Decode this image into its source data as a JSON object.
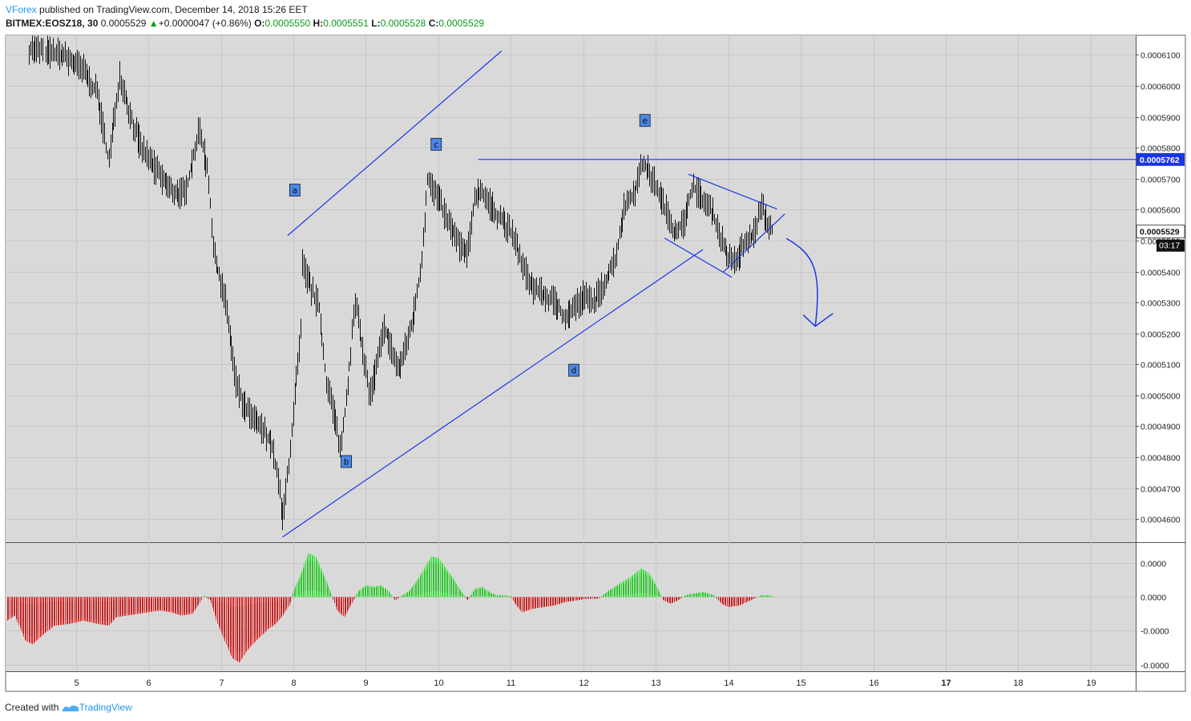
{
  "header": {
    "user": "VForex",
    "published_text": "published on TradingView.com, December 14, 2018 15:26 EET",
    "symbol": "BITMEX:EOSZ18, 30",
    "last": "0.0005529",
    "change": "+0.0000047 (+0.86%)",
    "o_label": "O:",
    "o_value": "0.0005550",
    "h_label": "H:",
    "h_value": "0.0005551",
    "l_label": "L:",
    "l_value": "0.0005528",
    "c_label": "C:",
    "c_value": "0.0005529"
  },
  "footer": {
    "created_with": "Created with",
    "brand": "TradingView"
  },
  "colors": {
    "background": "#d9d9d9",
    "trendline": "#1a35e6",
    "candle": "#111111",
    "osc_up": "#33e233",
    "osc_down": "#e02a2a",
    "axis_badge": "#1a35e6"
  },
  "chart_data": [
    {
      "type": "candlestick",
      "x_ticks": [
        "5",
        "6",
        "7",
        "8",
        "9",
        "10",
        "11",
        "12",
        "13",
        "14",
        "15",
        "16",
        "17",
        "18",
        "19"
      ],
      "x_tick_values": [
        5,
        6,
        7,
        8,
        9,
        10,
        11,
        12,
        13,
        14,
        15,
        16,
        17,
        18,
        19
      ],
      "xlim": [
        4.03,
        19.62
      ],
      "y_ticks": [
        "0.0004600",
        "0.0004700",
        "0.0004800",
        "0.0004900",
        "0.0005000",
        "0.0005100",
        "0.0005200",
        "0.0005300",
        "0.0005400",
        "0.0005500",
        "0.0005600",
        "0.0005700",
        "0.0005800",
        "0.0005900",
        "0.0006000",
        "0.0006100"
      ],
      "y_tick_values": [
        0.00046,
        0.00047,
        0.00048,
        0.00049,
        0.0005,
        0.00051,
        0.00052,
        0.00053,
        0.00054,
        0.00055,
        0.00056,
        0.00057,
        0.00058,
        0.00059,
        0.0006,
        0.00061
      ],
      "ylim": [
        0.00045255,
        0.00061632
      ],
      "grid": true,
      "price_path": [
        [
          4.35,
          0.000612
        ],
        [
          4.8,
          0.00061
        ],
        [
          5.1,
          0.000605
        ],
        [
          5.3,
          0.000597
        ],
        [
          5.45,
          0.000575
        ],
        [
          5.6,
          0.000604
        ],
        [
          5.75,
          0.00059
        ],
        [
          5.9,
          0.00058
        ],
        [
          6.1,
          0.000573
        ],
        [
          6.3,
          0.000566
        ],
        [
          6.5,
          0.000565
        ],
        [
          6.7,
          0.000586
        ],
        [
          6.82,
          0.000572
        ],
        [
          6.9,
          0.000545
        ],
        [
          7.05,
          0.000532
        ],
        [
          7.2,
          0.000505
        ],
        [
          7.3,
          0.000497
        ],
        [
          7.45,
          0.000492
        ],
        [
          7.6,
          0.000488
        ],
        [
          7.7,
          0.000484
        ],
        [
          7.8,
          0.00047
        ],
        [
          7.85,
          0.00046
        ],
        [
          7.92,
          0.000475
        ],
        [
          8.0,
          0.000495
        ],
        [
          8.1,
          0.00052
        ],
        [
          8.12,
          0.000542
        ],
        [
          8.2,
          0.000537
        ],
        [
          8.35,
          0.000528
        ],
        [
          8.45,
          0.000505
        ],
        [
          8.55,
          0.000495
        ],
        [
          8.65,
          0.000482
        ],
        [
          8.75,
          0.000505
        ],
        [
          8.85,
          0.00053
        ],
        [
          8.95,
          0.000515
        ],
        [
          9.05,
          0.0005
        ],
        [
          9.15,
          0.00051
        ],
        [
          9.25,
          0.000522
        ],
        [
          9.35,
          0.000515
        ],
        [
          9.45,
          0.000508
        ],
        [
          9.55,
          0.000516
        ],
        [
          9.65,
          0.000525
        ],
        [
          9.75,
          0.00054
        ],
        [
          9.85,
          0.00057
        ],
        [
          10.0,
          0.000563
        ],
        [
          10.15,
          0.000555
        ],
        [
          10.3,
          0.000548
        ],
        [
          10.4,
          0.000545
        ],
        [
          10.5,
          0.000565
        ],
        [
          10.6,
          0.000566
        ],
        [
          10.75,
          0.00056
        ],
        [
          10.9,
          0.000556
        ],
        [
          11.05,
          0.00055
        ],
        [
          11.15,
          0.000542
        ],
        [
          11.3,
          0.000535
        ],
        [
          11.45,
          0.000532
        ],
        [
          11.6,
          0.00053
        ],
        [
          11.75,
          0.000525
        ],
        [
          11.85,
          0.000528
        ],
        [
          12.0,
          0.000532
        ],
        [
          12.15,
          0.00053
        ],
        [
          12.3,
          0.000537
        ],
        [
          12.45,
          0.000545
        ],
        [
          12.55,
          0.00056
        ],
        [
          12.7,
          0.000566
        ],
        [
          12.82,
          0.000575
        ],
        [
          12.95,
          0.00057
        ],
        [
          13.1,
          0.000562
        ],
        [
          13.25,
          0.000553
        ],
        [
          13.4,
          0.000556
        ],
        [
          13.5,
          0.000568
        ],
        [
          13.65,
          0.000563
        ],
        [
          13.8,
          0.000558
        ],
        [
          13.95,
          0.000547
        ],
        [
          14.05,
          0.000542
        ],
        [
          14.2,
          0.000548
        ],
        [
          14.35,
          0.000552
        ],
        [
          14.45,
          0.000561
        ],
        [
          14.55,
          0.000555
        ],
        [
          14.62,
          0.000553
        ]
      ],
      "last_price_label": "0.0005529",
      "countdown_label": "03:17",
      "level_label": "0.0005762",
      "level_value": 0.0005762,
      "wave_labels": [
        {
          "text": "a",
          "x": 8.02,
          "y": 0.0005663
        },
        {
          "text": "b",
          "x": 8.73,
          "y": 0.0004786
        },
        {
          "text": "c",
          "x": 9.97,
          "y": 0.0005811
        },
        {
          "text": "d",
          "x": 11.87,
          "y": 0.0005081
        },
        {
          "text": "e",
          "x": 12.85,
          "y": 0.0005888
        }
      ],
      "trendlines": [
        {
          "x1": 7.92,
          "y1": 0.0005516,
          "x2": 10.87,
          "y2": 0.0006112
        },
        {
          "x1": 7.85,
          "y1": 0.0004542,
          "x2": 13.65,
          "y2": 0.0005471
        },
        {
          "x1": 10.55,
          "y1": 0.0005762,
          "x2": 19.62,
          "y2": 0.0005762
        },
        {
          "x1": 13.45,
          "y1": 0.0005714,
          "x2": 14.67,
          "y2": 0.0005602
        },
        {
          "x1": 13.12,
          "y1": 0.0005508,
          "x2": 14.05,
          "y2": 0.0005381
        },
        {
          "x1": 13.93,
          "y1": 0.0005398,
          "x2": 14.78,
          "y2": 0.0005586
        }
      ],
      "projection_arrow": {
        "from": [
          14.8,
          0.0005507
        ],
        "to": [
          15.2,
          0.0005223
        ]
      }
    },
    {
      "type": "histogram",
      "y_ticks": [
        "0.0000",
        "0.0000",
        "-0.0000",
        "-0.0000"
      ],
      "y_tick_values": [
        1.0,
        0.0,
        -1.0,
        -2.0
      ],
      "ylim": [
        -2.2,
        1.6
      ],
      "series_path": [
        [
          4.05,
          -0.7
        ],
        [
          4.15,
          -0.55
        ],
        [
          4.3,
          -1.3
        ],
        [
          4.4,
          -1.4
        ],
        [
          4.55,
          -1.1
        ],
        [
          4.7,
          -0.85
        ],
        [
          4.9,
          -0.8
        ],
        [
          5.1,
          -0.7
        ],
        [
          5.3,
          -0.8
        ],
        [
          5.45,
          -0.85
        ],
        [
          5.55,
          -0.6
        ],
        [
          5.7,
          -0.55
        ],
        [
          5.85,
          -0.5
        ],
        [
          6.0,
          -0.45
        ],
        [
          6.15,
          -0.4
        ],
        [
          6.3,
          -0.45
        ],
        [
          6.45,
          -0.55
        ],
        [
          6.6,
          -0.5
        ],
        [
          6.7,
          -0.2
        ],
        [
          6.75,
          0.05
        ],
        [
          6.85,
          -0.1
        ],
        [
          6.95,
          -0.8
        ],
        [
          7.05,
          -1.3
        ],
        [
          7.15,
          -1.8
        ],
        [
          7.25,
          -1.95
        ],
        [
          7.35,
          -1.6
        ],
        [
          7.5,
          -1.25
        ],
        [
          7.65,
          -0.95
        ],
        [
          7.75,
          -0.8
        ],
        [
          7.85,
          -0.55
        ],
        [
          7.95,
          -0.2
        ],
        [
          8.0,
          0.2
        ],
        [
          8.1,
          0.7
        ],
        [
          8.2,
          1.3
        ],
        [
          8.3,
          1.2
        ],
        [
          8.4,
          0.75
        ],
        [
          8.5,
          0.2
        ],
        [
          8.6,
          -0.4
        ],
        [
          8.7,
          -0.6
        ],
        [
          8.8,
          -0.2
        ],
        [
          8.9,
          0.2
        ],
        [
          9.0,
          0.35
        ],
        [
          9.1,
          0.3
        ],
        [
          9.2,
          0.35
        ],
        [
          9.3,
          0.2
        ],
        [
          9.4,
          -0.1
        ],
        [
          9.5,
          0.05
        ],
        [
          9.6,
          0.2
        ],
        [
          9.7,
          0.5
        ],
        [
          9.8,
          0.85
        ],
        [
          9.9,
          1.2
        ],
        [
          10.0,
          1.15
        ],
        [
          10.1,
          0.85
        ],
        [
          10.2,
          0.55
        ],
        [
          10.3,
          0.2
        ],
        [
          10.4,
          -0.1
        ],
        [
          10.5,
          0.25
        ],
        [
          10.6,
          0.3
        ],
        [
          10.7,
          0.15
        ],
        [
          10.8,
          0.05
        ],
        [
          10.9,
          0.05
        ],
        [
          11.0,
          0.02
        ],
        [
          11.05,
          -0.2
        ],
        [
          11.15,
          -0.45
        ],
        [
          11.3,
          -0.35
        ],
        [
          11.45,
          -0.3
        ],
        [
          11.6,
          -0.25
        ],
        [
          11.75,
          -0.15
        ],
        [
          11.9,
          -0.1
        ],
        [
          12.05,
          -0.05
        ],
        [
          12.2,
          -0.05
        ],
        [
          12.35,
          0.2
        ],
        [
          12.5,
          0.4
        ],
        [
          12.65,
          0.6
        ],
        [
          12.8,
          0.85
        ],
        [
          12.9,
          0.7
        ],
        [
          13.0,
          0.35
        ],
        [
          13.1,
          -0.1
        ],
        [
          13.2,
          -0.2
        ],
        [
          13.3,
          -0.1
        ],
        [
          13.4,
          0.05
        ],
        [
          13.5,
          0.1
        ],
        [
          13.65,
          0.15
        ],
        [
          13.8,
          0.05
        ],
        [
          13.9,
          -0.2
        ],
        [
          14.0,
          -0.3
        ],
        [
          14.15,
          -0.25
        ],
        [
          14.3,
          -0.1
        ],
        [
          14.45,
          0.05
        ],
        [
          14.55,
          0.05
        ],
        [
          14.62,
          0.02
        ]
      ],
      "colors": [
        "up",
        "down"
      ]
    }
  ]
}
